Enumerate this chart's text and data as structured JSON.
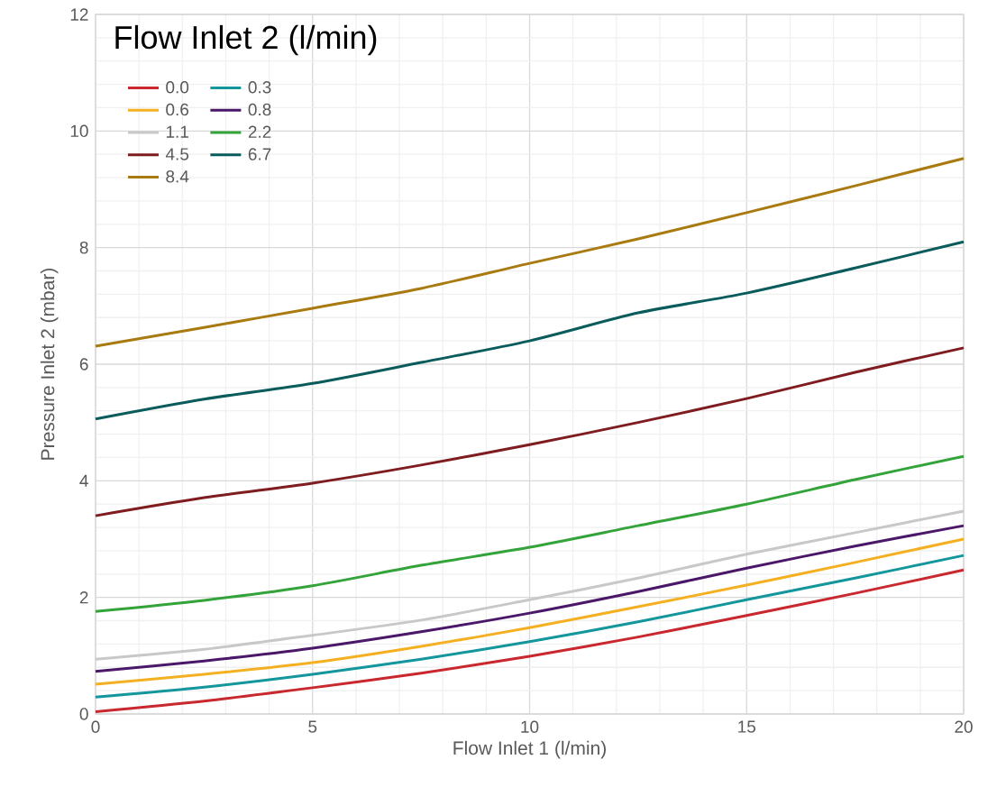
{
  "chart_data": {
    "type": "line",
    "xlabel": "Flow Inlet 1 (l/min)",
    "ylabel": "Pressure Inlet 2 (mbar)",
    "legend_title": "Flow Inlet 2 (l/min)",
    "legend": "top left",
    "grid": true,
    "x": [
      0,
      2.5,
      5,
      7.5,
      10,
      12.5,
      15,
      17.5,
      20
    ],
    "xlim": [
      0,
      20
    ],
    "xticks": [
      0,
      5,
      10,
      15,
      20
    ],
    "ylim": [
      0,
      12
    ],
    "yticks": [
      0,
      2,
      4,
      6,
      8,
      10,
      12
    ],
    "series": [
      {
        "name": "0.0",
        "color": "#c8282e",
        "values": [
          0.04,
          0.22,
          0.45,
          0.7,
          0.99,
          1.32,
          1.69,
          2.07,
          2.47
        ]
      },
      {
        "name": "0.3",
        "color": "#13969c",
        "values": [
          0.29,
          0.46,
          0.68,
          0.94,
          1.24,
          1.58,
          1.96,
          2.33,
          2.72
        ]
      },
      {
        "name": "0.6",
        "color": "#f5b022",
        "values": [
          0.51,
          0.68,
          0.88,
          1.16,
          1.48,
          1.84,
          2.21,
          2.6,
          3.0
        ]
      },
      {
        "name": "0.8",
        "color": "#4b1869",
        "values": [
          0.73,
          0.91,
          1.13,
          1.41,
          1.73,
          2.1,
          2.5,
          2.88,
          3.23
        ]
      },
      {
        "name": "1.1",
        "color": "#c8c8c8",
        "values": [
          0.94,
          1.11,
          1.35,
          1.61,
          1.96,
          2.33,
          2.74,
          3.11,
          3.48
        ]
      },
      {
        "name": "2.2",
        "color": "#33a33a",
        "values": [
          1.76,
          1.95,
          2.2,
          2.55,
          2.86,
          3.23,
          3.6,
          4.02,
          4.42
        ]
      },
      {
        "name": "4.5",
        "color": "#7f1c1f",
        "values": [
          3.4,
          3.71,
          3.96,
          4.27,
          4.62,
          5.0,
          5.41,
          5.86,
          6.28
        ]
      },
      {
        "name": "6.7",
        "color": "#0a5b5b",
        "values": [
          5.06,
          5.4,
          5.67,
          6.03,
          6.4,
          6.88,
          7.22,
          7.65,
          8.1
        ]
      },
      {
        "name": "8.4",
        "color": "#a87a10",
        "values": [
          6.31,
          6.63,
          6.96,
          7.3,
          7.73,
          8.15,
          8.6,
          9.06,
          9.53
        ]
      }
    ]
  }
}
